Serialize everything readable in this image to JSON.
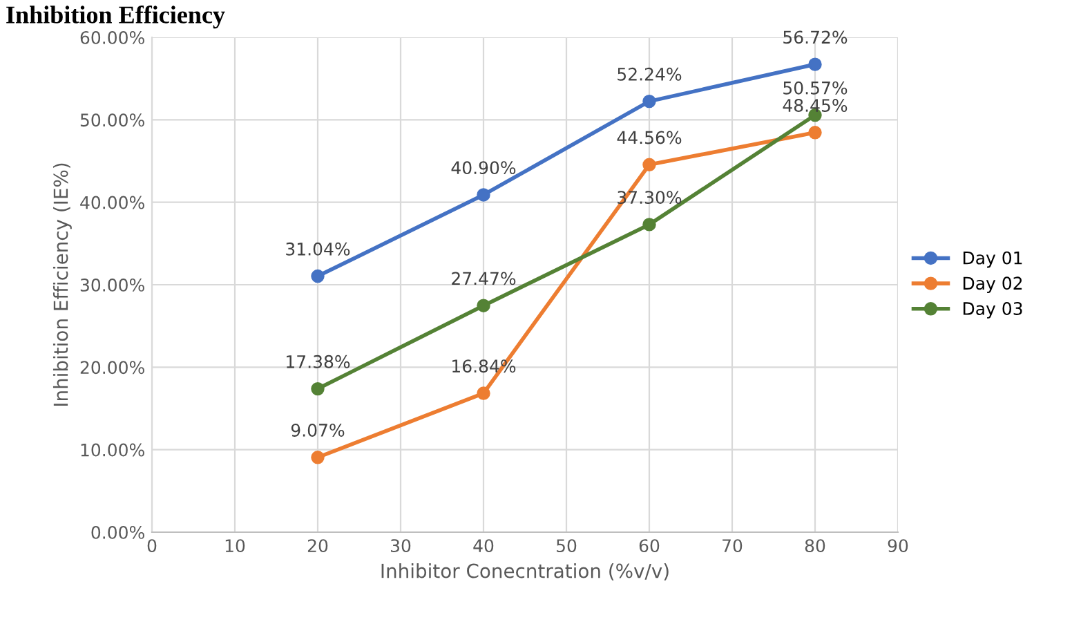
{
  "chart_data": {
    "type": "line",
    "title": "Inhibition Efficiency",
    "xlabel": "Inhibitor Conecntration (%v/v)",
    "ylabel": "Inhibition Efficiency (IE%)",
    "x": [
      20,
      40,
      60,
      80
    ],
    "series": [
      {
        "name": "Day 01",
        "color": "#4472c4",
        "values": [
          31.04,
          40.9,
          52.24,
          56.72
        ],
        "value_labels": [
          "31.04%",
          "40.90%",
          "52.24%",
          "56.72%"
        ]
      },
      {
        "name": "Day 02",
        "color": "#ed7d31",
        "values": [
          9.07,
          16.84,
          44.56,
          48.45
        ],
        "value_labels": [
          "9.07%",
          "16.84%",
          "44.56%",
          "48.45%"
        ]
      },
      {
        "name": "Day 03",
        "color": "#548235",
        "values": [
          17.38,
          27.47,
          37.3,
          50.57
        ],
        "value_labels": [
          "17.38%",
          "27.47%",
          "37.30%",
          "50.57%"
        ]
      }
    ],
    "xlim": [
      0,
      90
    ],
    "xticks": [
      0,
      10,
      20,
      30,
      40,
      50,
      60,
      70,
      80,
      90
    ],
    "ylim": [
      0,
      60
    ],
    "yticks": [
      {
        "value": 0,
        "label": "0.00%"
      },
      {
        "value": 10,
        "label": "10.00%"
      },
      {
        "value": 20,
        "label": "20.00%"
      },
      {
        "value": 30,
        "label": "30.00%"
      },
      {
        "value": 40,
        "label": "40.00%"
      },
      {
        "value": 50,
        "label": "50.00%"
      },
      {
        "value": 60,
        "label": "60.00%"
      }
    ],
    "grid": true,
    "legend": "right",
    "marker": "circle",
    "line_style": "solid"
  }
}
